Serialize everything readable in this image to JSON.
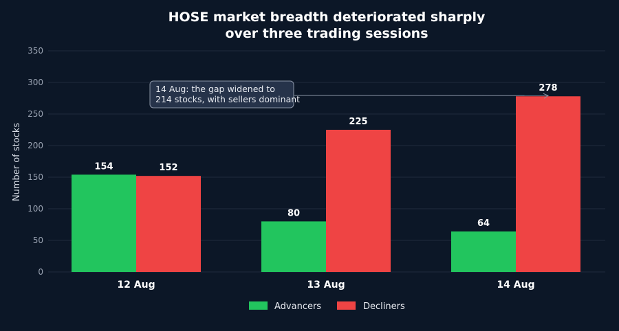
{
  "chart_data": {
    "type": "bar",
    "title_lines": [
      "HOSE market breadth deteriorated sharply",
      "over three trading sessions"
    ],
    "xlabel": "",
    "ylabel": "Number of stocks",
    "categories": [
      "12 Aug",
      "13 Aug",
      "14 Aug"
    ],
    "series": [
      {
        "name": "Advancers",
        "values": [
          154,
          80,
          64
        ],
        "color": "#22c55e"
      },
      {
        "name": "Decliners",
        "values": [
          152,
          225,
          278
        ],
        "color": "#ef4444"
      }
    ],
    "ylim": [
      0,
      350
    ],
    "yticks": [
      0,
      50,
      100,
      150,
      200,
      250,
      300,
      350
    ],
    "grid": true,
    "legend_position": "bottom-center",
    "annotation": {
      "lines": [
        "14 Aug: the gap widened to",
        "214 stocks, with sellers dominant"
      ],
      "target_category": "14 Aug",
      "target_series": "Decliners"
    },
    "colors": {
      "background": "#0c1727",
      "grid": "#1f2b3d"
    }
  }
}
